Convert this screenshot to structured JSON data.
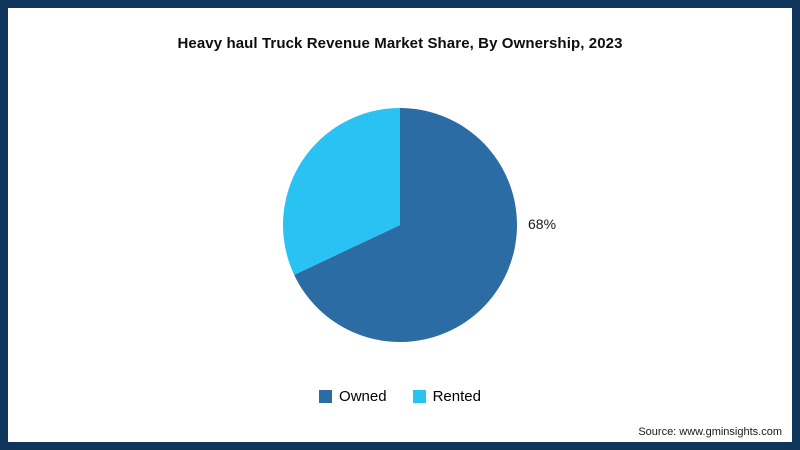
{
  "frame": {
    "border_color": "#10365c",
    "background_color": "#ffffff"
  },
  "chart_data": {
    "type": "pie",
    "title": "Heavy haul Truck Revenue Market Share, By Ownership, 2023",
    "start_angle_deg": 0,
    "direction": "clockwise",
    "legend_position": "bottom",
    "slices": [
      {
        "label": "Owned",
        "value": 68,
        "color": "#2b6ca4",
        "data_label": "68%"
      },
      {
        "label": "Rented",
        "value": 32,
        "color": "#29c2f3",
        "data_label": ""
      }
    ]
  },
  "source": {
    "text": "Source: www.gminsights.com"
  }
}
